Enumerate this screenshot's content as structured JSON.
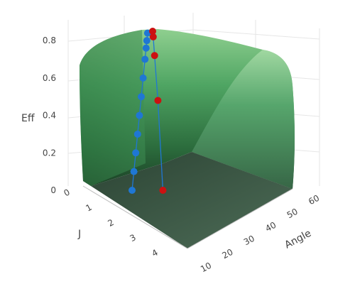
{
  "chart_data": {
    "type": "surface",
    "z_axis": {
      "label": "Eff",
      "ticks": [
        "0",
        "0.2",
        "0.4",
        "0.6",
        "0.8"
      ],
      "range": [
        0,
        0.85
      ]
    },
    "j_axis": {
      "label": "J",
      "ticks": [
        "0",
        "1",
        "2",
        "3",
        "4"
      ],
      "range": [
        0,
        4.6
      ]
    },
    "angle_axis": {
      "label": "Angle",
      "ticks": [
        "10",
        "20",
        "30",
        "40",
        "50",
        "60"
      ],
      "range": [
        8,
        62
      ]
    },
    "surface": {
      "colorscale": "greens",
      "description_values": "efficiency surface over J and Angle"
    },
    "series": [
      {
        "marker_color": "#1f77d4",
        "points": [
          {
            "J": 0.22,
            "eff": 0.0
          },
          {
            "J": 0.22,
            "eff": 0.1
          },
          {
            "J": 0.22,
            "eff": 0.2
          },
          {
            "J": 0.22,
            "eff": 0.3
          },
          {
            "J": 0.22,
            "eff": 0.4
          },
          {
            "J": 0.22,
            "eff": 0.5
          },
          {
            "J": 0.22,
            "eff": 0.6
          },
          {
            "J": 0.22,
            "eff": 0.7
          },
          {
            "J": 0.22,
            "eff": 0.76
          },
          {
            "J": 0.22,
            "eff": 0.8
          },
          {
            "J": 0.22,
            "eff": 0.84
          }
        ]
      },
      {
        "marker_color": "#cc1111",
        "points": [
          {
            "J": 0.3,
            "eff": 0.85
          },
          {
            "J": 0.5,
            "eff": 0.82
          },
          {
            "J": 1.0,
            "eff": 0.72
          },
          {
            "J": 2.2,
            "eff": 0.48
          },
          {
            "J": 4.0,
            "eff": 0.0
          }
        ]
      }
    ],
    "grid": true
  }
}
